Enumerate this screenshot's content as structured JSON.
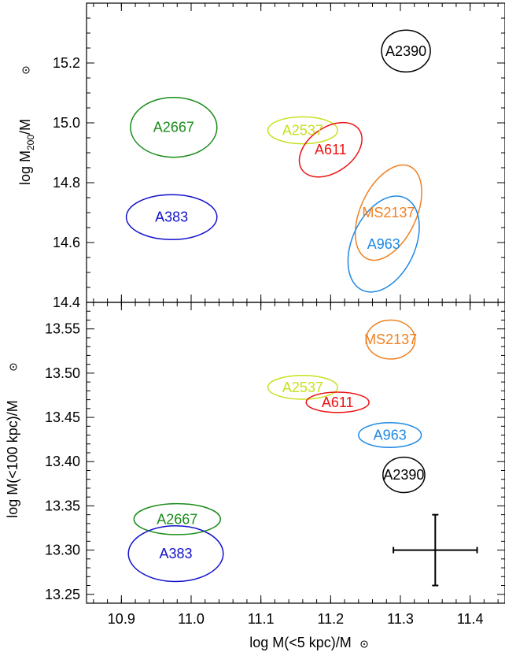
{
  "chart_data": [
    {
      "type": "scatter",
      "panel": "top",
      "xlabel": "",
      "ylabel_main": "log M",
      "ylabel_sub": "200",
      "ylabel_tail": "/M",
      "xlim": [
        10.85,
        11.45
      ],
      "ylim": [
        14.4,
        15.4
      ],
      "yticks": [
        "14.4",
        "14.6",
        "14.8",
        "15.0",
        "15.2"
      ],
      "clusters": [
        {
          "name": "A2390",
          "color": "#000000",
          "x": 11.308,
          "y": 15.24,
          "rx": 0.035,
          "ry": 0.07,
          "angle": 0
        },
        {
          "name": "A2667",
          "color": "#1a8c1a",
          "x": 10.975,
          "y": 14.985,
          "rx": 0.062,
          "ry": 0.1,
          "angle": 0
        },
        {
          "name": "A2537",
          "color": "#c8e01e",
          "x": 11.16,
          "y": 14.975,
          "rx": 0.05,
          "ry": 0.045,
          "angle": 0
        },
        {
          "name": "A611",
          "color": "#ee1111",
          "x": 11.2,
          "y": 14.91,
          "rx": 0.05,
          "ry": 0.075,
          "angle": -35
        },
        {
          "name": "A383",
          "color": "#1111cc",
          "x": 10.972,
          "y": 14.685,
          "rx": 0.065,
          "ry": 0.075,
          "angle": 0
        },
        {
          "name": "MS2137",
          "color": "#f08020",
          "x": 11.283,
          "y": 14.7,
          "rx": 0.04,
          "ry": 0.17,
          "angle": 25
        },
        {
          "name": "A963",
          "color": "#1e88e5",
          "x": 11.276,
          "y": 14.595,
          "rx": 0.045,
          "ry": 0.17,
          "angle": 25
        }
      ]
    },
    {
      "type": "scatter",
      "panel": "bottom",
      "xlabel_main": "log M(<5 kpc)/M",
      "ylabel_main": "log M(<100 kpc)/M",
      "xlim": [
        10.85,
        11.45
      ],
      "ylim": [
        13.24,
        13.58
      ],
      "xticks": [
        "10.9",
        "11.0",
        "11.1",
        "11.2",
        "11.3",
        "11.4"
      ],
      "yticks": [
        "13.25",
        "13.30",
        "13.35",
        "13.40",
        "13.45",
        "13.50",
        "13.55"
      ],
      "clusters": [
        {
          "name": "MS2137",
          "color": "#f08020",
          "x": 11.286,
          "y": 13.538,
          "rx": 0.035,
          "ry": 0.022,
          "angle": 0
        },
        {
          "name": "A2537",
          "color": "#c8e01e",
          "x": 11.16,
          "y": 13.484,
          "rx": 0.05,
          "ry": 0.0135,
          "angle": 0
        },
        {
          "name": "A611",
          "color": "#ee1111",
          "x": 11.21,
          "y": 13.467,
          "rx": 0.045,
          "ry": 0.0115,
          "angle": 0
        },
        {
          "name": "A963",
          "color": "#1e88e5",
          "x": 11.285,
          "y": 13.43,
          "rx": 0.045,
          "ry": 0.014,
          "angle": 0
        },
        {
          "name": "A2390",
          "color": "#000000",
          "x": 11.305,
          "y": 13.385,
          "rx": 0.03,
          "ry": 0.02,
          "angle": 0
        },
        {
          "name": "A2667",
          "color": "#1a8c1a",
          "x": 10.98,
          "y": 13.335,
          "rx": 0.062,
          "ry": 0.0175,
          "angle": 0
        },
        {
          "name": "A383",
          "color": "#1111cc",
          "x": 10.978,
          "y": 13.296,
          "rx": 0.068,
          "ry": 0.0315,
          "angle": 0
        }
      ],
      "error_bar": {
        "x": 11.35,
        "y": 13.3,
        "xerr": 0.06,
        "yerr": 0.04
      }
    }
  ]
}
